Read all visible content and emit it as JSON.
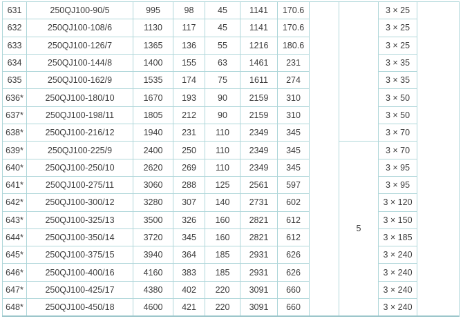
{
  "colors": {
    "grid": "#aed6d9",
    "outer_border": "#9cc6cb",
    "text": "#3c3c3c",
    "background": "#ffffff"
  },
  "table": {
    "group_label": "5",
    "rows": [
      {
        "no": "631",
        "model": "250QJ100-90/5",
        "c3": "995",
        "c4": "98",
        "c5": "45",
        "c6": "1141",
        "c7": "170.6",
        "cable": "3 × 25"
      },
      {
        "no": "632",
        "model": "250QJ100-108/6",
        "c3": "1130",
        "c4": "117",
        "c5": "45",
        "c6": "1141",
        "c7": "170.6",
        "cable": "3 × 25"
      },
      {
        "no": "633",
        "model": "250QJ100-126/7",
        "c3": "1365",
        "c4": "136",
        "c5": "55",
        "c6": "1216",
        "c7": "180.6",
        "cable": "3 × 25"
      },
      {
        "no": "634",
        "model": "250QJ100-144/8",
        "c3": "1400",
        "c4": "155",
        "c5": "63",
        "c6": "1461",
        "c7": "231",
        "cable": "3 × 35"
      },
      {
        "no": "635",
        "model": "250QJ100-162/9",
        "c3": "1535",
        "c4": "174",
        "c5": "75",
        "c6": "1611",
        "c7": "274",
        "cable": "3 × 35"
      },
      {
        "no": "636*",
        "model": "250QJ100-180/10",
        "c3": "1670",
        "c4": "193",
        "c5": "90",
        "c6": "2159",
        "c7": "310",
        "cable": "3 × 50"
      },
      {
        "no": "637*",
        "model": "250QJ100-198/11",
        "c3": "1805",
        "c4": "212",
        "c5": "90",
        "c6": "2159",
        "c7": "310",
        "cable": "3 × 50"
      },
      {
        "no": "638*",
        "model": "250QJ100-216/12",
        "c3": "1940",
        "c4": "231",
        "c5": "110",
        "c6": "2349",
        "c7": "345",
        "cable": "3 × 70"
      },
      {
        "no": "639*",
        "model": "250QJ100-225/9",
        "c3": "2400",
        "c4": "250",
        "c5": "110",
        "c6": "2349",
        "c7": "345",
        "cable": "3 × 70"
      },
      {
        "no": "640*",
        "model": "250QJ100-250/10",
        "c3": "2620",
        "c4": "269",
        "c5": "110",
        "c6": "2349",
        "c7": "345",
        "cable": "3 × 95"
      },
      {
        "no": "641*",
        "model": "250QJ100-275/11",
        "c3": "3060",
        "c4": "288",
        "c5": "125",
        "c6": "2561",
        "c7": "597",
        "cable": "3 × 95"
      },
      {
        "no": "642*",
        "model": "250QJ100-300/12",
        "c3": "3280",
        "c4": "307",
        "c5": "140",
        "c6": "2731",
        "c7": "602",
        "cable": "3 × 120"
      },
      {
        "no": "643*",
        "model": "250QJ100-325/13",
        "c3": "3500",
        "c4": "326",
        "c5": "160",
        "c6": "2821",
        "c7": "612",
        "cable": "3 × 150"
      },
      {
        "no": "644*",
        "model": "250QJ100-350/14",
        "c3": "3720",
        "c4": "345",
        "c5": "160",
        "c6": "2821",
        "c7": "612",
        "cable": "3 × 185"
      },
      {
        "no": "645*",
        "model": "250QJ100-375/15",
        "c3": "3940",
        "c4": "364",
        "c5": "185",
        "c6": "2931",
        "c7": "626",
        "cable": "3 × 240"
      },
      {
        "no": "646*",
        "model": "250QJ100-400/16",
        "c3": "4160",
        "c4": "383",
        "c5": "185",
        "c6": "2931",
        "c7": "626",
        "cable": "3 × 240"
      },
      {
        "no": "647*",
        "model": "250QJ100-425/17",
        "c3": "4380",
        "c4": "402",
        "c5": "220",
        "c6": "3091",
        "c7": "660",
        "cable": "3 × 240"
      },
      {
        "no": "648*",
        "model": "250QJ100-450/18",
        "c3": "4600",
        "c4": "421",
        "c5": "220",
        "c6": "3091",
        "c7": "660",
        "cable": "3 × 240"
      }
    ]
  }
}
